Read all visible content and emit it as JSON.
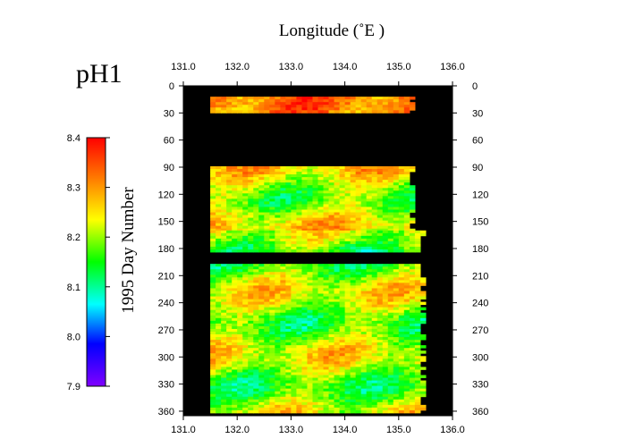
{
  "chart_data": {
    "type": "heatmap",
    "title": "pH1",
    "xlabel": "Longitude (˚E )",
    "ylabel": "1995  Day Number",
    "xlim": [
      131.0,
      136.0
    ],
    "ylim": [
      0,
      365
    ],
    "x_ticks": [
      "131.0",
      "132.0",
      "133.0",
      "134.0",
      "135.0",
      "136.0"
    ],
    "x_tick_values": [
      131.0,
      132.0,
      133.0,
      134.0,
      135.0,
      136.0
    ],
    "y_ticks": [
      "0",
      "30",
      "60",
      "90",
      "120",
      "150",
      "180",
      "210",
      "240",
      "270",
      "300",
      "330",
      "360"
    ],
    "y_tick_values": [
      0,
      30,
      60,
      90,
      120,
      150,
      180,
      210,
      240,
      270,
      300,
      330,
      360
    ],
    "colorbar": {
      "range": [
        7.9,
        8.4
      ],
      "ticks": [
        "8.4",
        "8.3",
        "8.2",
        "8.1",
        "8.0",
        "7.9"
      ],
      "tick_values": [
        8.4,
        8.3,
        8.2,
        8.1,
        8.0,
        7.9
      ],
      "colors": [
        "#ff0000",
        "#ff8000",
        "#ffff00",
        "#00ff00",
        "#00ffff",
        "#0000ff",
        "#8000ff"
      ]
    },
    "background_color": "#000000",
    "data_bands": [
      {
        "day_start": 12,
        "day_end": 30,
        "lon_start": 131.5,
        "lon_end": 135.2,
        "mean_ph": 8.28
      },
      {
        "day_start": 89,
        "day_end": 160,
        "lon_start": 131.5,
        "lon_end": 135.2,
        "mean_ph": 8.22
      },
      {
        "day_start": 160,
        "day_end": 182,
        "lon_start": 131.5,
        "lon_end": 135.4,
        "mean_ph": 8.18
      },
      {
        "day_start": 197,
        "day_end": 360,
        "lon_start": 131.5,
        "lon_end": 135.4,
        "mean_ph": 8.2
      }
    ]
  }
}
